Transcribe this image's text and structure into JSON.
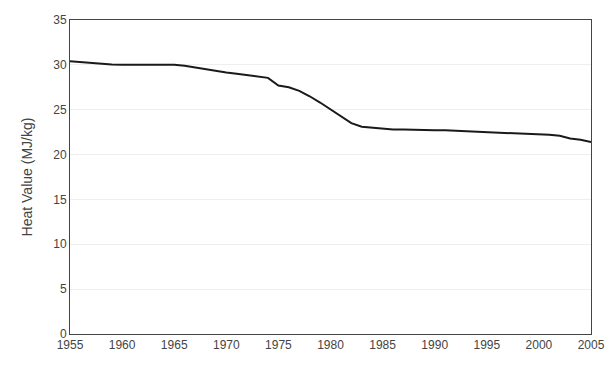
{
  "chart_data": {
    "type": "line",
    "x": [
      1955,
      1956,
      1957,
      1958,
      1959,
      1960,
      1961,
      1962,
      1963,
      1964,
      1965,
      1966,
      1967,
      1968,
      1969,
      1970,
      1971,
      1972,
      1973,
      1974,
      1975,
      1976,
      1977,
      1978,
      1979,
      1980,
      1981,
      1982,
      1983,
      1984,
      1985,
      1986,
      1987,
      1988,
      1989,
      1990,
      1991,
      1992,
      1993,
      1994,
      1995,
      1996,
      1997,
      1998,
      1999,
      2000,
      2001,
      2002,
      2003,
      2004,
      2005
    ],
    "values": [
      30.4,
      30.3,
      30.2,
      30.1,
      30.05,
      30.0,
      30.0,
      30.0,
      30.0,
      30.0,
      30.0,
      29.9,
      29.7,
      29.5,
      29.3,
      29.15,
      29.0,
      28.85,
      28.75,
      28.55,
      27.7,
      27.5,
      27.1,
      26.5,
      25.8,
      25.0,
      24.2,
      23.5,
      23.1,
      23.0,
      22.9,
      22.8,
      22.8,
      22.75,
      22.75,
      22.7,
      22.7,
      22.65,
      22.6,
      22.55,
      22.5,
      22.5,
      22.45,
      22.4,
      22.35,
      22.3,
      22.2,
      22.1,
      21.8,
      21.65,
      21.4
    ],
    "color": "#1a1a1a",
    "ylabel": "Heat Value (MJ/kg)",
    "xlim": [
      1955,
      2005
    ],
    "xticks": [
      1955,
      1960,
      1965,
      1970,
      1975,
      1980,
      1985,
      1990,
      1995,
      2000,
      2005
    ],
    "ylim": [
      0,
      35
    ],
    "yticks": [
      0,
      5,
      10,
      15,
      20,
      25,
      30,
      35
    ],
    "grid": true
  }
}
